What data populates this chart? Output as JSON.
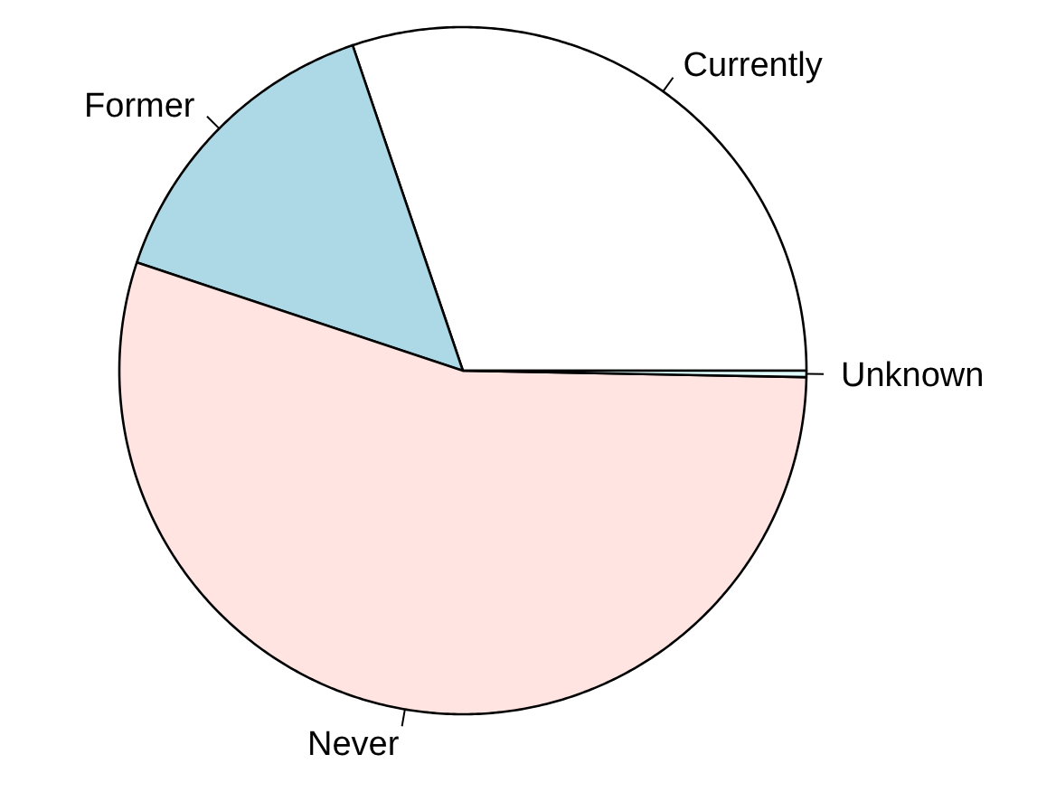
{
  "chart_data": {
    "type": "pie",
    "categories": [
      "Currently",
      "Former",
      "Never",
      "Unknown"
    ],
    "values": [
      30.2,
      14.7,
      54.8,
      0.3
    ],
    "colors": [
      "#ffffff",
      "#add8e6",
      "#ffe4e1",
      "#e0ffff"
    ]
  }
}
